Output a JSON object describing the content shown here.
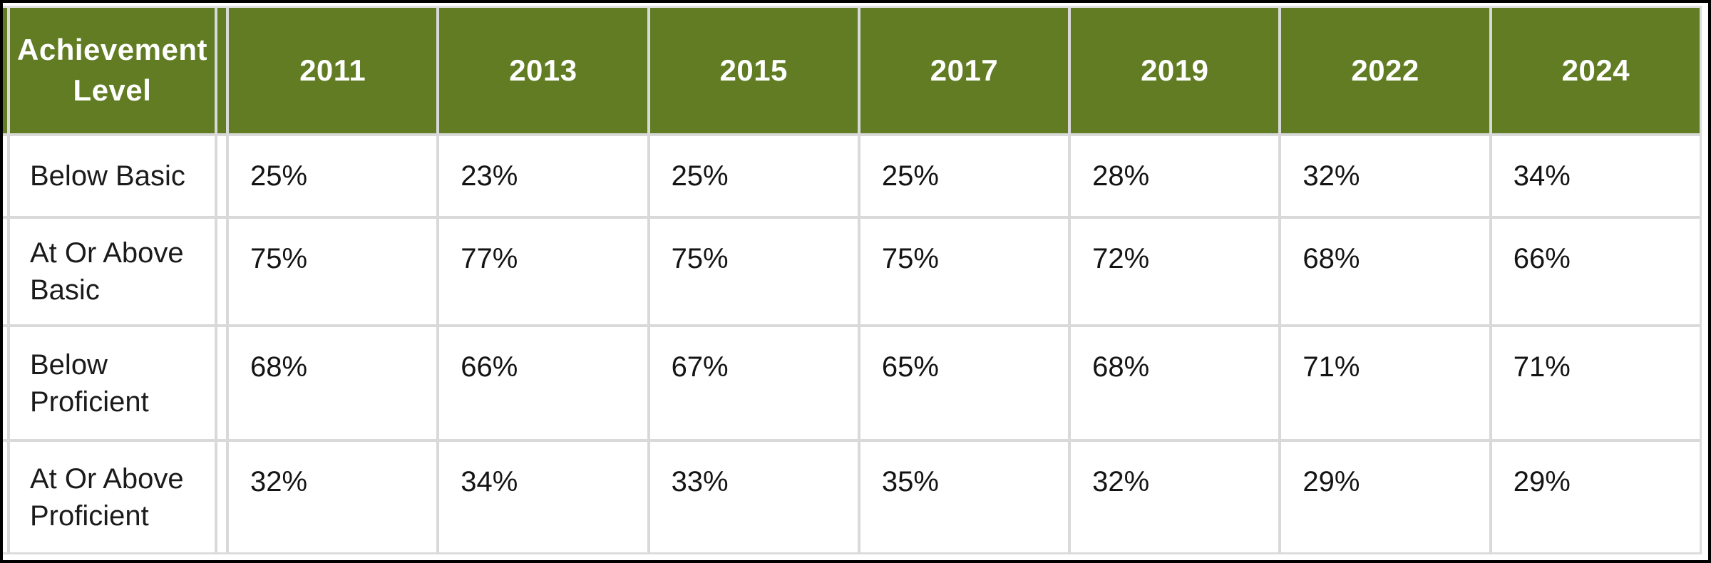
{
  "table": {
    "corner_label": "Achievement Level",
    "header": {
      "years": [
        "2011",
        "2013",
        "2015",
        "2017",
        "2019",
        "2022",
        "2024"
      ]
    },
    "rows": [
      {
        "label": "Below Basic",
        "values": [
          "25%",
          "23%",
          "25%",
          "25%",
          "28%",
          "32%",
          "34%"
        ]
      },
      {
        "label": "At Or Above Basic",
        "values": [
          "75%",
          "77%",
          "75%",
          "75%",
          "72%",
          "68%",
          "66%"
        ]
      },
      {
        "label": "Below Proficient",
        "values": [
          "68%",
          "66%",
          "67%",
          "65%",
          "68%",
          "71%",
          "71%"
        ]
      },
      {
        "label": "At Or Above Proficient",
        "values": [
          "32%",
          "34%",
          "33%",
          "35%",
          "32%",
          "29%",
          "29%"
        ]
      }
    ],
    "colors": {
      "header_background": "#617C23",
      "header_text": "#ffffff",
      "body_text": "#1b1b1b",
      "grid_line": "#d9d9d9",
      "outer_frame": "#000000",
      "cell_background": "#ffffff"
    }
  },
  "chart_data": {
    "type": "table",
    "row_header": "Achievement Level",
    "categories": [
      "2011",
      "2013",
      "2015",
      "2017",
      "2019",
      "2022",
      "2024"
    ],
    "unit": "%",
    "series": [
      {
        "name": "Below Basic",
        "values": [
          25,
          23,
          25,
          25,
          28,
          32,
          34
        ]
      },
      {
        "name": "At Or Above Basic",
        "values": [
          75,
          77,
          75,
          75,
          72,
          68,
          66
        ]
      },
      {
        "name": "Below Proficient",
        "values": [
          68,
          66,
          67,
          65,
          68,
          71,
          71
        ]
      },
      {
        "name": "At Or Above Proficient",
        "values": [
          32,
          34,
          33,
          35,
          32,
          29,
          29
        ]
      }
    ]
  }
}
